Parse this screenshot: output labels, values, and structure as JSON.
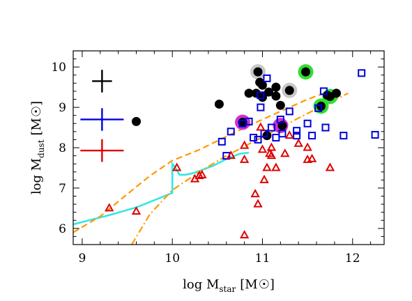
{
  "chart_data": {
    "type": "scatter",
    "title": "",
    "xlabel": {
      "main": "log M",
      "sub": "star",
      "unit": "[M",
      "unit_end": "]"
    },
    "ylabel": {
      "main": "log M",
      "sub": "dust",
      "unit": "[M",
      "unit_end": "]"
    },
    "xlim": [
      8.9,
      12.35
    ],
    "ylim": [
      5.6,
      10.4
    ],
    "xticks": [
      9,
      10,
      11,
      12
    ],
    "yticks": [
      6,
      7,
      8,
      9,
      10
    ],
    "grid": false,
    "highlight_rings": [
      {
        "color": "#c8c8c8",
        "points": [
          [
            10.95,
            9.88
          ],
          [
            11.3,
            9.42
          ]
        ]
      },
      {
        "color": "#33dd33",
        "points": [
          [
            11.48,
            9.88
          ],
          [
            11.65,
            9.03
          ],
          [
            11.75,
            9.27
          ]
        ]
      },
      {
        "color": "#cc33cc",
        "points": [
          [
            10.78,
            8.63
          ],
          [
            11.2,
            8.55
          ]
        ]
      }
    ],
    "series": [
      {
        "marker": "filled-circle",
        "color": "#000000",
        "points": [
          [
            9.6,
            8.65
          ],
          [
            10.52,
            9.08
          ],
          [
            10.78,
            8.63
          ],
          [
            10.85,
            9.35
          ],
          [
            10.93,
            9.35
          ],
          [
            10.95,
            9.88
          ],
          [
            10.97,
            9.62
          ],
          [
            11.0,
            9.25
          ],
          [
            11.0,
            9.55
          ],
          [
            11.07,
            9.38
          ],
          [
            11.05,
            8.3
          ],
          [
            11.15,
            9.28
          ],
          [
            11.15,
            9.5
          ],
          [
            11.2,
            9.05
          ],
          [
            11.22,
            8.55
          ],
          [
            11.3,
            9.42
          ],
          [
            11.48,
            9.88
          ],
          [
            11.65,
            9.03
          ],
          [
            11.72,
            9.3
          ],
          [
            11.75,
            9.27
          ],
          [
            11.82,
            9.35
          ]
        ]
      },
      {
        "marker": "open-square",
        "color": "#0000dd",
        "points": [
          [
            10.55,
            8.15
          ],
          [
            10.6,
            7.8
          ],
          [
            10.65,
            8.4
          ],
          [
            10.78,
            8.6
          ],
          [
            10.85,
            8.65
          ],
          [
            10.9,
            8.25
          ],
          [
            10.95,
            8.2
          ],
          [
            10.98,
            9.3
          ],
          [
            10.98,
            9.0
          ],
          [
            11.02,
            8.35
          ],
          [
            11.05,
            9.72
          ],
          [
            11.1,
            8.5
          ],
          [
            11.15,
            8.25
          ],
          [
            11.2,
            8.7
          ],
          [
            11.22,
            8.35
          ],
          [
            11.3,
            8.9
          ],
          [
            11.38,
            8.3
          ],
          [
            11.38,
            8.42
          ],
          [
            11.5,
            8.6
          ],
          [
            11.55,
            8.3
          ],
          [
            11.62,
            8.98
          ],
          [
            11.68,
            9.4
          ],
          [
            11.7,
            8.5
          ],
          [
            11.9,
            8.3
          ],
          [
            12.1,
            9.85
          ],
          [
            12.25,
            8.32
          ]
        ]
      },
      {
        "marker": "open-triangle",
        "color": "#dd0000",
        "points": [
          [
            9.3,
            6.5
          ],
          [
            9.6,
            6.42
          ],
          [
            10.05,
            7.5
          ],
          [
            10.25,
            7.22
          ],
          [
            10.3,
            7.3
          ],
          [
            10.33,
            7.32
          ],
          [
            10.65,
            7.8
          ],
          [
            10.8,
            7.7
          ],
          [
            10.8,
            5.83
          ],
          [
            10.8,
            8.05
          ],
          [
            10.92,
            6.85
          ],
          [
            10.95,
            6.6
          ],
          [
            10.98,
            8.5
          ],
          [
            11.0,
            7.95
          ],
          [
            11.02,
            7.2
          ],
          [
            11.05,
            7.5
          ],
          [
            11.08,
            7.85
          ],
          [
            11.1,
            7.8
          ],
          [
            11.1,
            8.0
          ],
          [
            11.15,
            7.5
          ],
          [
            11.25,
            7.85
          ],
          [
            11.3,
            8.3
          ],
          [
            11.4,
            8.1
          ],
          [
            11.5,
            7.7
          ],
          [
            11.5,
            8.0
          ],
          [
            11.55,
            7.72
          ],
          [
            11.75,
            7.5
          ]
        ]
      }
    ],
    "lines": [
      {
        "style": "solid",
        "color": "#33e6e6",
        "points": [
          [
            8.9,
            6.1
          ],
          [
            9.3,
            6.33
          ],
          [
            9.6,
            6.52
          ],
          [
            10.0,
            6.88
          ],
          [
            10.0,
            7.6
          ],
          [
            10.03,
            7.52
          ],
          [
            10.08,
            7.33
          ],
          [
            10.15,
            7.33
          ],
          [
            10.25,
            7.38
          ],
          [
            10.45,
            7.55
          ],
          [
            10.6,
            7.72
          ],
          [
            10.75,
            7.85
          ],
          [
            10.85,
            7.88
          ]
        ]
      },
      {
        "style": "dashed",
        "color": "#ff9900",
        "points": [
          [
            8.9,
            5.9
          ],
          [
            9.2,
            6.3
          ],
          [
            9.5,
            6.85
          ],
          [
            9.75,
            7.3
          ],
          [
            10.0,
            7.68
          ],
          [
            10.3,
            7.95
          ],
          [
            10.6,
            8.28
          ],
          [
            10.9,
            8.6
          ],
          [
            11.2,
            8.9
          ],
          [
            11.5,
            9.2
          ],
          [
            11.75,
            9.4
          ]
        ]
      },
      {
        "style": "dash-dot",
        "color": "#ff9900",
        "points": [
          [
            9.55,
            5.6
          ],
          [
            9.75,
            6.35
          ],
          [
            10.0,
            6.95
          ],
          [
            10.3,
            7.4
          ],
          [
            10.6,
            7.8
          ],
          [
            10.9,
            8.15
          ],
          [
            11.2,
            8.5
          ],
          [
            11.5,
            8.85
          ],
          [
            11.8,
            9.18
          ],
          [
            11.95,
            9.35
          ]
        ]
      }
    ],
    "error_bars": [
      {
        "color": "#000000",
        "x": 9.22,
        "y": 9.65,
        "half_x": 0.11,
        "half_y": 0.28
      },
      {
        "color": "#0000dd",
        "x": 9.22,
        "y": 8.7,
        "half_x": 0.24,
        "half_y": 0.28
      },
      {
        "color": "#dd0000",
        "x": 9.22,
        "y": 7.93,
        "half_x": 0.24,
        "half_y": 0.28
      }
    ]
  }
}
